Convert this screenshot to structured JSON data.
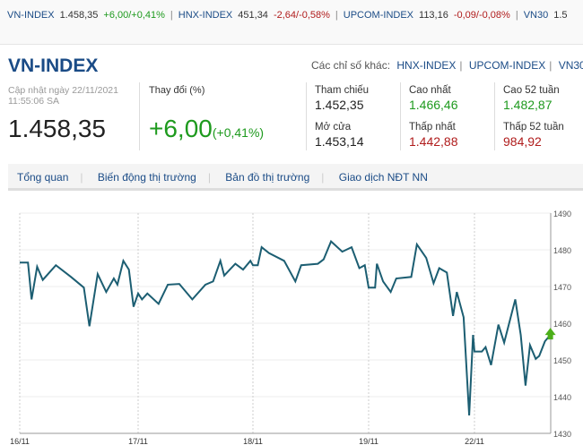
{
  "ticker": [
    {
      "name": "VN-INDEX",
      "value": "1.458,35",
      "change": "+6,00/+0,41%",
      "dir": "up"
    },
    {
      "name": "HNX-INDEX",
      "value": "451,34",
      "change": "-2,64/-0,58%",
      "dir": "down"
    },
    {
      "name": "UPCOM-INDEX",
      "value": "113,16",
      "change": "-0,09/-0,08%",
      "dir": "down"
    },
    {
      "name": "VN30",
      "value": "1.5",
      "change": "",
      "dir": "up"
    }
  ],
  "header": {
    "title": "VN-INDEX",
    "others_label": "Các chỉ số khác:",
    "others": [
      "HNX-INDEX",
      "UPCOM-INDEX",
      "VN30"
    ]
  },
  "summary": {
    "updated": "Cập nhật ngày 22/11/2021 11:55:06 SA",
    "value": "1.458,35",
    "change_label": "Thay đổi (%)",
    "change": "+6,00",
    "change_pct": "(+0,41%)"
  },
  "stats": [
    {
      "label": "Tham chiếu",
      "value": "1.452,35",
      "color": "#222222"
    },
    {
      "label": "Cao nhất",
      "value": "1.466,46",
      "color": "#1e9a1e"
    },
    {
      "label": "Cao 52 tuần",
      "value": "1.482,87",
      "color": "#1e9a1e"
    },
    {
      "label": "Mở cửa",
      "value": "1.453,14",
      "color": "#222222"
    },
    {
      "label": "Thấp nhất",
      "value": "1.442,88",
      "color": "#b01c1c"
    },
    {
      "label": "Thấp 52 tuần",
      "value": "984,92",
      "color": "#b01c1c"
    }
  ],
  "tabs": [
    "Tổng quan",
    "Biến động thị trường",
    "Bản đồ thị trường",
    "Giao dịch NĐT NN"
  ],
  "chart_data": {
    "type": "line",
    "line_color": "#1c5e72",
    "ylim": [
      1430,
      1490
    ],
    "yticks": [
      1430,
      1440,
      1450,
      1460,
      1470,
      1480,
      1490
    ],
    "xticks": [
      "16/11",
      "17/11",
      "18/11",
      "19/11",
      "22/11"
    ],
    "grid": true,
    "series": [
      {
        "points": [
          [
            "16/11 09:00",
            1476.5
          ],
          [
            "16/11 09:25",
            1476.5
          ],
          [
            "16/11 09:36",
            1466.5
          ],
          [
            "16/11 09:53",
            1475.4
          ],
          [
            "16/11 10:10",
            1471.8
          ],
          [
            "16/11 10:50",
            1475.8
          ],
          [
            "16/11 11:36",
            1472.6
          ],
          [
            "16/11 12:15",
            1469.7
          ],
          [
            "16/11 12:32",
            1459.2
          ],
          [
            "16/11 12:57",
            1473.4
          ],
          [
            "16/11 13:23",
            1468.5
          ],
          [
            "16/11 13:46",
            1472.2
          ],
          [
            "16/11 13:57",
            1470.5
          ],
          [
            "16/11 14:15",
            1477
          ],
          [
            "16/11 14:32",
            1474.6
          ],
          [
            "16/11 14:46",
            1464.5
          ],
          [
            "17/11 09:00",
            1468.1
          ],
          [
            "17/11 09:12",
            1466.5
          ],
          [
            "17/11 09:29",
            1468.1
          ],
          [
            "17/11 10:04",
            1465.3
          ],
          [
            "17/11 10:33",
            1470.5
          ],
          [
            "17/11 11:09",
            1470.7
          ],
          [
            "17/11 11:50",
            1466.5
          ],
          [
            "17/11 12:31",
            1470.5
          ],
          [
            "17/11 12:55",
            1471.4
          ],
          [
            "17/11 13:18",
            1477
          ],
          [
            "17/11 13:30",
            1473
          ],
          [
            "17/11 14:05",
            1476.2
          ],
          [
            "17/11 14:29",
            1474.6
          ],
          [
            "17/11 14:52",
            1477
          ],
          [
            "18/11 09:00",
            1475.8
          ],
          [
            "18/11 09:15",
            1475.8
          ],
          [
            "18/11 09:27",
            1480.7
          ],
          [
            "18/11 09:50",
            1479.1
          ],
          [
            "18/11 10:37",
            1477
          ],
          [
            "18/11 11:12",
            1471.4
          ],
          [
            "18/11 11:30",
            1475.8
          ],
          [
            "18/11 12:22",
            1476.2
          ],
          [
            "18/11 12:40",
            1477.4
          ],
          [
            "18/11 13:03",
            1482.3
          ],
          [
            "18/11 13:38",
            1479.5
          ],
          [
            "18/11 14:07",
            1480.7
          ],
          [
            "18/11 14:31",
            1475
          ],
          [
            "18/11 14:48",
            1475.8
          ],
          [
            "19/11 09:00",
            1469.7
          ],
          [
            "19/11 09:22",
            1469.7
          ],
          [
            "19/11 09:28",
            1476.2
          ],
          [
            "19/11 09:49",
            1471.4
          ],
          [
            "19/11 10:15",
            1468.5
          ],
          [
            "19/11 10:34",
            1472.2
          ],
          [
            "19/11 11:25",
            1472.6
          ],
          [
            "19/11 11:44",
            1481.5
          ],
          [
            "19/11 12:16",
            1477.8
          ],
          [
            "19/11 12:41",
            1470.9
          ],
          [
            "19/11 13:00",
            1475
          ],
          [
            "19/11 13:26",
            1473.8
          ],
          [
            "19/11 13:47",
            1462
          ],
          [
            "19/11 14:00",
            1468.5
          ],
          [
            "19/11 14:23",
            1461.6
          ],
          [
            "19/11 14:42",
            1434.9
          ],
          [
            "19/11 14:55",
            1456.8
          ],
          [
            "22/11 09:00",
            1452.3
          ],
          [
            "22/11 09:23",
            1452.3
          ],
          [
            "22/11 09:35",
            1453.5
          ],
          [
            "22/11 09:52",
            1448.6
          ],
          [
            "22/11 10:15",
            1459.6
          ],
          [
            "22/11 10:33",
            1454.7
          ],
          [
            "22/11 11:08",
            1466.5
          ],
          [
            "22/11 11:25",
            1456.8
          ],
          [
            "22/11 11:40",
            1443
          ],
          [
            "22/11 11:54",
            1454
          ],
          [
            "22/11 12:12",
            1450.3
          ],
          [
            "22/11 12:23",
            1451.1
          ],
          [
            "22/11 12:41",
            1455.1
          ],
          [
            "22/11 12:58",
            1456.8
          ]
        ]
      }
    ],
    "last_marker": "up-arrow-icon",
    "marker_color": "#4caf1a"
  }
}
